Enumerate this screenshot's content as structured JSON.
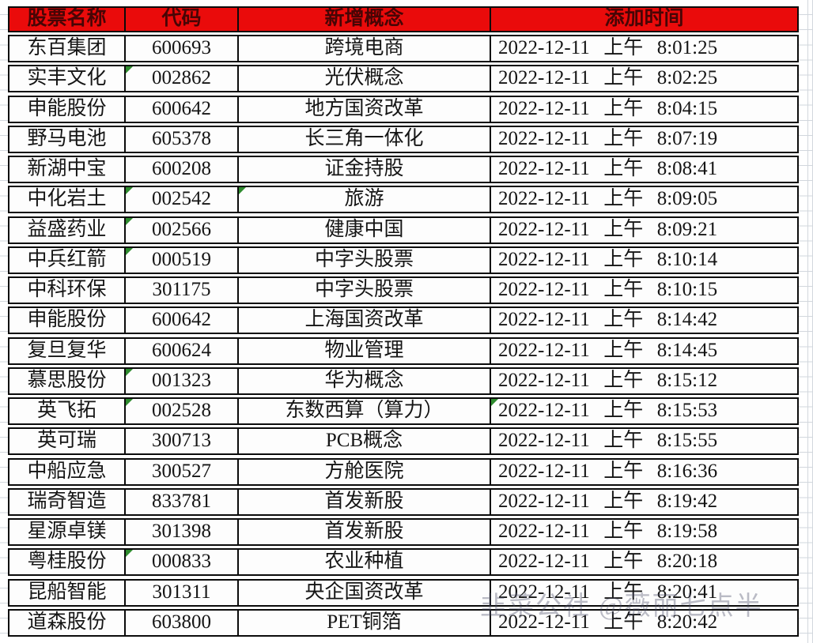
{
  "table": {
    "headers": [
      {
        "label": "股票名称"
      },
      {
        "label": "代码"
      },
      {
        "label": "新增概念"
      },
      {
        "label": "添加时间"
      }
    ],
    "rows": [
      {
        "name": "东百集团",
        "code": "600693",
        "concept": "跨境电商",
        "time": "2022-12-11 上午 8:01:25",
        "flags": {
          "code": false,
          "concept": false,
          "time": false
        }
      },
      {
        "name": "实丰文化",
        "code": "002862",
        "concept": "光伏概念",
        "time": "2022-12-11 上午 8:02:25",
        "flags": {
          "code": true,
          "concept": false,
          "time": false
        }
      },
      {
        "name": "申能股份",
        "code": "600642",
        "concept": "地方国资改革",
        "time": "2022-12-11 上午 8:04:15",
        "flags": {
          "code": false,
          "concept": false,
          "time": false
        }
      },
      {
        "name": "野马电池",
        "code": "605378",
        "concept": "长三角一体化",
        "time": "2022-12-11 上午 8:07:19",
        "flags": {
          "code": false,
          "concept": false,
          "time": false
        }
      },
      {
        "name": "新湖中宝",
        "code": "600208",
        "concept": "证金持股",
        "time": "2022-12-11 上午 8:08:41",
        "flags": {
          "code": false,
          "concept": false,
          "time": false
        }
      },
      {
        "name": "中化岩土",
        "code": "002542",
        "concept": "旅游",
        "time": "2022-12-11 上午 8:09:05",
        "flags": {
          "code": true,
          "concept": true,
          "time": false
        }
      },
      {
        "name": "益盛药业",
        "code": "002566",
        "concept": "健康中国",
        "time": "2022-12-11 上午 8:09:21",
        "flags": {
          "code": true,
          "concept": false,
          "time": false
        }
      },
      {
        "name": "中兵红箭",
        "code": "000519",
        "concept": "中字头股票",
        "time": "2022-12-11 上午 8:10:14",
        "flags": {
          "code": true,
          "concept": false,
          "time": false
        }
      },
      {
        "name": "中科环保",
        "code": "301175",
        "concept": "中字头股票",
        "time": "2022-12-11 上午 8:10:15",
        "flags": {
          "code": false,
          "concept": false,
          "time": false
        }
      },
      {
        "name": "申能股份",
        "code": "600642",
        "concept": "上海国资改革",
        "time": "2022-12-11 上午 8:14:42",
        "flags": {
          "code": false,
          "concept": false,
          "time": false
        }
      },
      {
        "name": "复旦复华",
        "code": "600624",
        "concept": "物业管理",
        "time": "2022-12-11 上午 8:14:45",
        "flags": {
          "code": false,
          "concept": false,
          "time": false
        }
      },
      {
        "name": "慕思股份",
        "code": "001323",
        "concept": "华为概念",
        "time": "2022-12-11 上午 8:15:12",
        "flags": {
          "code": true,
          "concept": false,
          "time": false
        }
      },
      {
        "name": "英飞拓",
        "code": "002528",
        "concept": "东数西算（算力）",
        "time": "2022-12-11 上午 8:15:53",
        "flags": {
          "code": true,
          "concept": false,
          "time": true
        }
      },
      {
        "name": "英可瑞",
        "code": "300713",
        "concept": "PCB概念",
        "time": "2022-12-11 上午 8:15:55",
        "flags": {
          "code": false,
          "concept": false,
          "time": false
        }
      },
      {
        "name": "中船应急",
        "code": "300527",
        "concept": "方舱医院",
        "time": "2022-12-11 上午 8:16:36",
        "flags": {
          "code": false,
          "concept": false,
          "time": false
        }
      },
      {
        "name": "瑞奇智造",
        "code": "833781",
        "concept": "首发新股",
        "time": "2022-12-11 上午 8:19:42",
        "flags": {
          "code": false,
          "concept": false,
          "time": false
        }
      },
      {
        "name": "星源卓镁",
        "code": "301398",
        "concept": "首发新股",
        "time": "2022-12-11 上午 8:19:58",
        "flags": {
          "code": false,
          "concept": false,
          "time": false
        }
      },
      {
        "name": "粤桂股份",
        "code": "000833",
        "concept": "农业种植",
        "time": "2022-12-11 上午 8:20:18",
        "flags": {
          "code": true,
          "concept": false,
          "time": false
        }
      },
      {
        "name": "昆船智能",
        "code": "301311",
        "concept": "央企国资改革",
        "time": "2022-12-11 上午 8:20:41",
        "flags": {
          "code": false,
          "concept": false,
          "time": false
        }
      },
      {
        "name": "道森股份",
        "code": "603800",
        "concept": "PET铜箔",
        "time": "2022-12-11 上午 8:20:42",
        "flags": {
          "code": false,
          "concept": false,
          "time": false
        }
      }
    ]
  },
  "watermark": {
    "text": "韭菜公社 @薇丽七点半"
  },
  "colors": {
    "header_bg": "#ea0b0b",
    "header_text": "#470505",
    "border": "#0b0b0b",
    "triangle_green": "#2e8b2e"
  }
}
